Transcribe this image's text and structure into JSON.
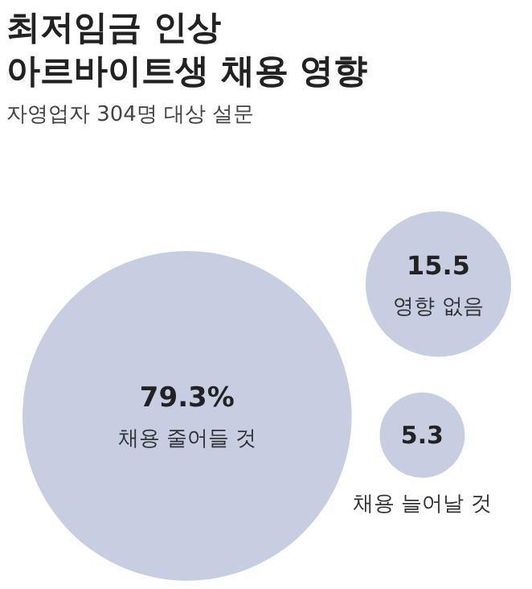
{
  "chart_data": {
    "type": "other",
    "title": "최저임금 인상\n아르바이트생 채용 영향",
    "subtitle": "자영업자 304명 대상 설문",
    "categories": [
      "채용 줄어들 것",
      "영향 없음",
      "채용 늘어날 것"
    ],
    "values": [
      79.3,
      15.5,
      5.3
    ],
    "value_labels": [
      "79.3%",
      "15.5",
      "5.3"
    ],
    "colors": [
      "#c8cee2",
      "#c8cee2",
      "#c8cee2"
    ]
  }
}
